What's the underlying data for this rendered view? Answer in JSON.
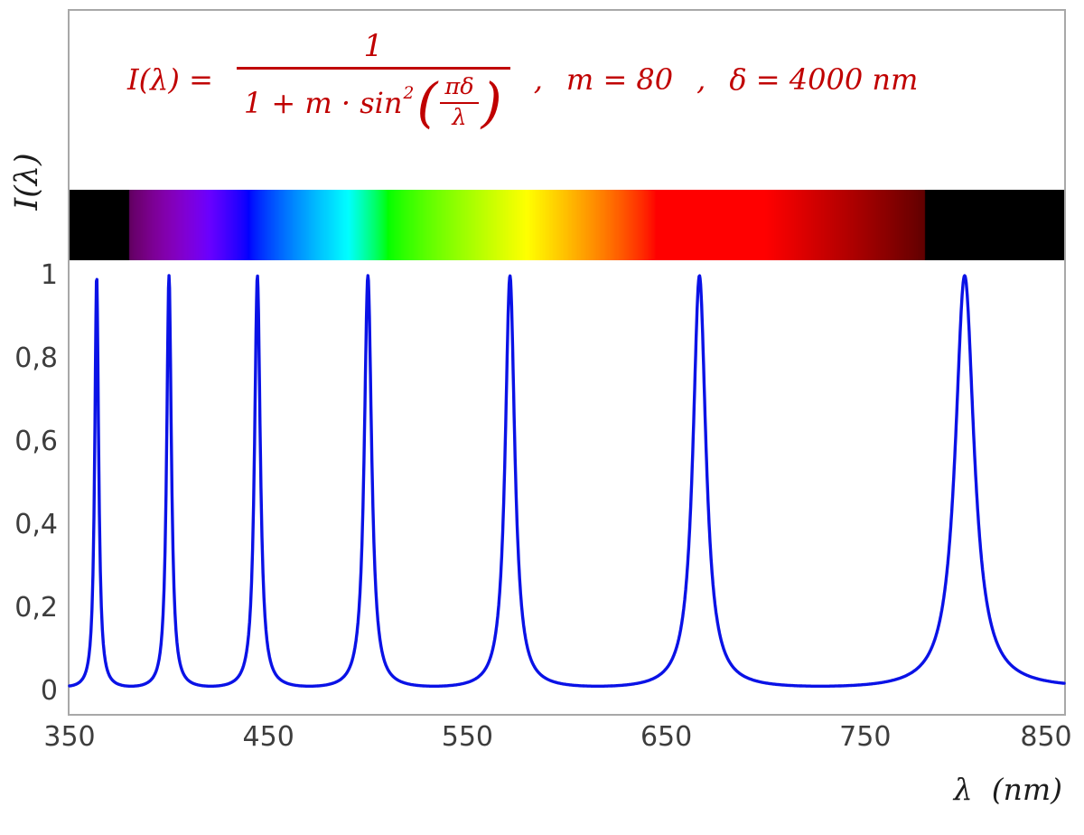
{
  "figure": {
    "formula": {
      "lhs": "I(λ) =",
      "numerator": "1",
      "denom_prefix": "1 + m · sin",
      "denom_sup": "2",
      "paren_open": "(",
      "inner_num": "πδ",
      "inner_den": "λ",
      "comma1": ",",
      "param_m": "m = 80",
      "comma2": ",",
      "param_delta": "δ = 4000 nm",
      "color": "#c00000"
    },
    "y_axis": {
      "title": "I(λ)",
      "tick_labels": [
        "1",
        "0,8",
        "0,6",
        "0,4",
        "0,2",
        "0"
      ]
    },
    "x_axis": {
      "title": "λ  (nm)",
      "tick_labels": [
        "350",
        "450",
        "550",
        "650",
        "750",
        "850"
      ]
    },
    "frame_border_color": "#a8a8a8",
    "tick_color": "#3d3d3d"
  },
  "chart_data": {
    "type": "line",
    "title": "",
    "annotation": "I(λ) = 1 / (1 + m·sin²(πδ/λ)) ,  m = 80 ,  δ = 4000 nm",
    "function": "I(lambda) = 1 / (1 + m * sin^2(pi*delta/lambda))",
    "params": {
      "m": 80,
      "delta_nm": 4000
    },
    "xlabel": "λ  (nm)",
    "ylabel": "I(λ)",
    "x_range_nm": [
      350,
      850
    ],
    "y_range": [
      0,
      1
    ],
    "x_ticks": [
      350,
      450,
      550,
      650,
      750,
      850
    ],
    "x_tick_labels": [
      "350",
      "450",
      "550",
      "650",
      "750",
      "850"
    ],
    "y_ticks": [
      1,
      0.8,
      0.6,
      0.4,
      0.2,
      0
    ],
    "y_tick_labels": [
      "1",
      "0,8",
      "0,6",
      "0,4",
      "0,2",
      "0"
    ],
    "peak_wavelengths_nm": [
      363.64,
      400,
      444.44,
      500,
      571.43,
      666.67,
      800
    ],
    "peak_value": 1,
    "min_value": 0.0123,
    "line_color": "#0a12e6",
    "grid": false,
    "legend": "none",
    "spectrum_bar": {
      "from_nm": 350,
      "to_nm": 850,
      "visible_from_nm": 380,
      "visible_to_nm": 780,
      "outside_color": "#000000"
    }
  }
}
